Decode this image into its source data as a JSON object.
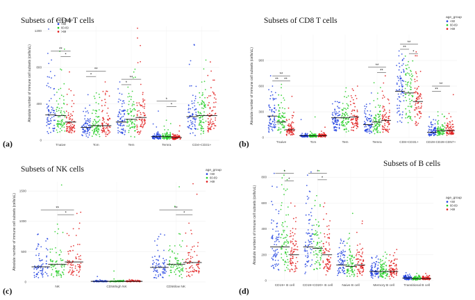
{
  "legend": {
    "title": "age_group",
    "groups": [
      "<60",
      "60-69",
      ">69"
    ],
    "colors": [
      "#1f3fe0",
      "#22cc22",
      "#e01818"
    ]
  },
  "chart_data": [
    {
      "id": "a",
      "panel_label": "(a)",
      "title": "Subsets of CD4 T cells",
      "type": "scatter",
      "ylabel": "Absolute number of immune cell subsets (cells/uL)",
      "yticks": [
        0,
        400,
        800,
        1200
      ],
      "ylim": [
        0,
        1250
      ],
      "categories": [
        "Tnaive",
        "Tcm",
        "Tem",
        "Temra",
        "CD4+CD31+"
      ],
      "series": [
        {
          "name": "<60",
          "medians": [
            280,
            140,
            200,
            40,
            260
          ],
          "max": [
            1220,
            500,
            640,
            320,
            1050
          ]
        },
        {
          "name": "60-69",
          "medians": [
            270,
            160,
            230,
            40,
            270
          ],
          "max": [
            1000,
            520,
            780,
            220,
            880
          ]
        },
        {
          "name": ">69",
          "medians": [
            200,
            160,
            250,
            30,
            270
          ],
          "max": [
            750,
            640,
            1230,
            160,
            860
          ]
        }
      ],
      "significance": [
        {
          "cat": 0,
          "from": 0,
          "to": 2,
          "label": "**",
          "y": 980
        },
        {
          "cat": 0,
          "from": 1,
          "to": 2,
          "label": "*",
          "y": 920
        },
        {
          "cat": 1,
          "from": 0,
          "to": 2,
          "label": "**",
          "y": 760
        },
        {
          "cat": 1,
          "from": 0,
          "to": 1,
          "label": "*",
          "y": 700
        },
        {
          "cat": 2,
          "from": 0,
          "to": 2,
          "label": "**",
          "y": 670
        },
        {
          "cat": 2,
          "from": 0,
          "to": 1,
          "label": "*",
          "y": 610
        },
        {
          "cat": 3,
          "from": 0,
          "to": 2,
          "label": "*",
          "y": 430
        },
        {
          "cat": 3,
          "from": 1,
          "to": 2,
          "label": "*",
          "y": 370
        }
      ]
    },
    {
      "id": "b",
      "panel_label": "(b)",
      "title": "Subsets of CD8 T cells",
      "type": "scatter",
      "ylabel": "Absolute number of immune cell subsets (cells/uL)",
      "yticks": [
        0,
        300,
        600,
        900
      ],
      "ylim": [
        0,
        1200
      ],
      "categories": [
        "Tnaive",
        "Tcm",
        "Tem",
        "Temra",
        "CD8+CD31+",
        "CD28-CD28-CD57+"
      ],
      "series": [
        {
          "name": "<60",
          "medians": [
            250,
            20,
            230,
            150,
            540,
            60
          ],
          "max": [
            720,
            210,
            420,
            520,
            1010,
            240
          ]
        },
        {
          "name": "60-69",
          "medians": [
            180,
            20,
            230,
            180,
            520,
            80
          ],
          "max": [
            620,
            240,
            580,
            640,
            950,
            300
          ]
        },
        {
          "name": ">69",
          "medians": [
            90,
            20,
            240,
            200,
            420,
            80
          ],
          "max": [
            480,
            120,
            600,
            720,
            1000,
            500
          ]
        }
      ],
      "significance": [
        {
          "cat": 0,
          "from": 0,
          "to": 2,
          "label": "**",
          "y": 720
        },
        {
          "cat": 0,
          "from": 0,
          "to": 1,
          "label": "**",
          "y": 660
        },
        {
          "cat": 0,
          "from": 1,
          "to": 2,
          "label": "**",
          "y": 660
        },
        {
          "cat": 3,
          "from": 0,
          "to": 2,
          "label": "**",
          "y": 820
        },
        {
          "cat": 3,
          "from": 1,
          "to": 2,
          "label": "**",
          "y": 760
        },
        {
          "cat": 4,
          "from": 0,
          "to": 2,
          "label": "**",
          "y": 1090
        },
        {
          "cat": 4,
          "from": 0,
          "to": 1,
          "label": "**",
          "y": 1030
        },
        {
          "cat": 4,
          "from": 1,
          "to": 2,
          "label": "*",
          "y": 980
        },
        {
          "cat": 5,
          "from": 0,
          "to": 2,
          "label": "**",
          "y": 600
        },
        {
          "cat": 5,
          "from": 0,
          "to": 1,
          "label": "**",
          "y": 540
        }
      ]
    },
    {
      "id": "c",
      "panel_label": "(c)",
      "title": "Subsets of NK cells",
      "type": "scatter",
      "ylabel": "Absolute number of immune cell subsets (cells/uL)",
      "yticks": [
        0,
        500,
        1000,
        1500
      ],
      "ylim": [
        0,
        1650
      ],
      "categories": [
        "NK",
        "CD56high NK",
        "CD56low NK"
      ],
      "series": [
        {
          "name": "<60",
          "medians": [
            250,
            10,
            240
          ],
          "max": [
            790,
            90,
            790
          ]
        },
        {
          "name": "60-69",
          "medians": [
            290,
            10,
            290
          ],
          "max": [
            1600,
            180,
            1570
          ]
        },
        {
          "name": ">69",
          "medians": [
            330,
            10,
            320
          ],
          "max": [
            1150,
            40,
            1620
          ]
        }
      ],
      "significance": [
        {
          "cat": 0,
          "from": 0,
          "to": 2,
          "label": "**",
          "y": 1190
        },
        {
          "cat": 0,
          "from": 1,
          "to": 2,
          "label": "*",
          "y": 1110
        },
        {
          "cat": 2,
          "from": 0,
          "to": 2,
          "label": "**",
          "y": 1190
        },
        {
          "cat": 2,
          "from": 1,
          "to": 2,
          "label": "*",
          "y": 1110
        }
      ]
    },
    {
      "id": "d",
      "panel_label": "(d)",
      "title": "Subsets of B cells",
      "type": "scatter",
      "ylabel": "Absolute numbers of immune cell subsets (cells/uL)",
      "yticks": [
        0,
        200,
        400,
        600,
        800
      ],
      "ylim": [
        0,
        860
      ],
      "categories": [
        "CD19+ B cell",
        "CD19+CD20+ B cell",
        "Naive B cell",
        "Memory B cell",
        "Transitional B cell"
      ],
      "series": [
        {
          "name": "<60",
          "medians": [
            260,
            260,
            120,
            70,
            20
          ],
          "max": [
            830,
            840,
            320,
            190,
            60
          ]
        },
        {
          "name": "60-69",
          "medians": [
            260,
            250,
            110,
            70,
            15
          ],
          "max": [
            850,
            850,
            520,
            220,
            55
          ]
        },
        {
          "name": ">69",
          "medians": [
            200,
            200,
            120,
            70,
            15
          ],
          "max": [
            600,
            600,
            460,
            240,
            55
          ]
        }
      ],
      "significance": [
        {
          "cat": 0,
          "from": 0,
          "to": 2,
          "label": "*",
          "y": 830
        },
        {
          "cat": 0,
          "from": 1,
          "to": 2,
          "label": "*",
          "y": 770
        },
        {
          "cat": 1,
          "from": 0,
          "to": 2,
          "label": "*",
          "y": 830
        },
        {
          "cat": 1,
          "from": 1,
          "to": 2,
          "label": "*",
          "y": 780
        }
      ]
    }
  ]
}
